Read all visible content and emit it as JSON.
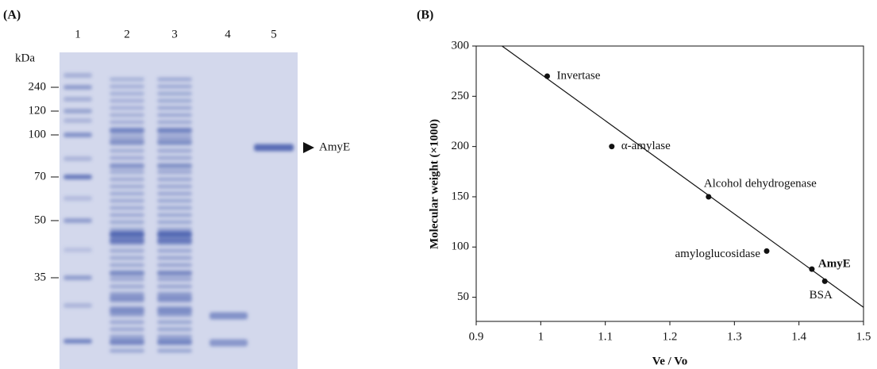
{
  "panel_a": {
    "label": "(A)",
    "lanes": [
      "1",
      "2",
      "3",
      "4",
      "5"
    ],
    "unit": "kDa",
    "markers": [
      240,
      120,
      100,
      70,
      50,
      35
    ],
    "band_label": "AmyE"
  },
  "chart_data": {
    "type": "scatter",
    "panel_label": "(B)",
    "x_label": "Ve / Vo",
    "y_label": "Molecular weight (×1000)",
    "point_labels": [
      "Invertase",
      "α-amylase",
      "Alcohol dehydrogenase",
      "amyloglucosidase",
      "AmyE",
      "BSA"
    ],
    "x": [
      1.01,
      1.11,
      1.26,
      1.35,
      1.42,
      1.44
    ],
    "values": [
      270,
      200,
      150,
      96,
      78,
      66
    ],
    "color": "#111",
    "fit_line": {
      "x": [
        0.94,
        1.5
      ],
      "y": [
        300,
        40
      ]
    },
    "xlim": [
      0.9,
      1.5
    ],
    "xticks": [
      0.9,
      1.0,
      1.1,
      1.2,
      1.3,
      1.4,
      1.5
    ],
    "ylim": [
      26,
      300
    ],
    "yticks": [
      50,
      100,
      150,
      200,
      250,
      300
    ]
  }
}
